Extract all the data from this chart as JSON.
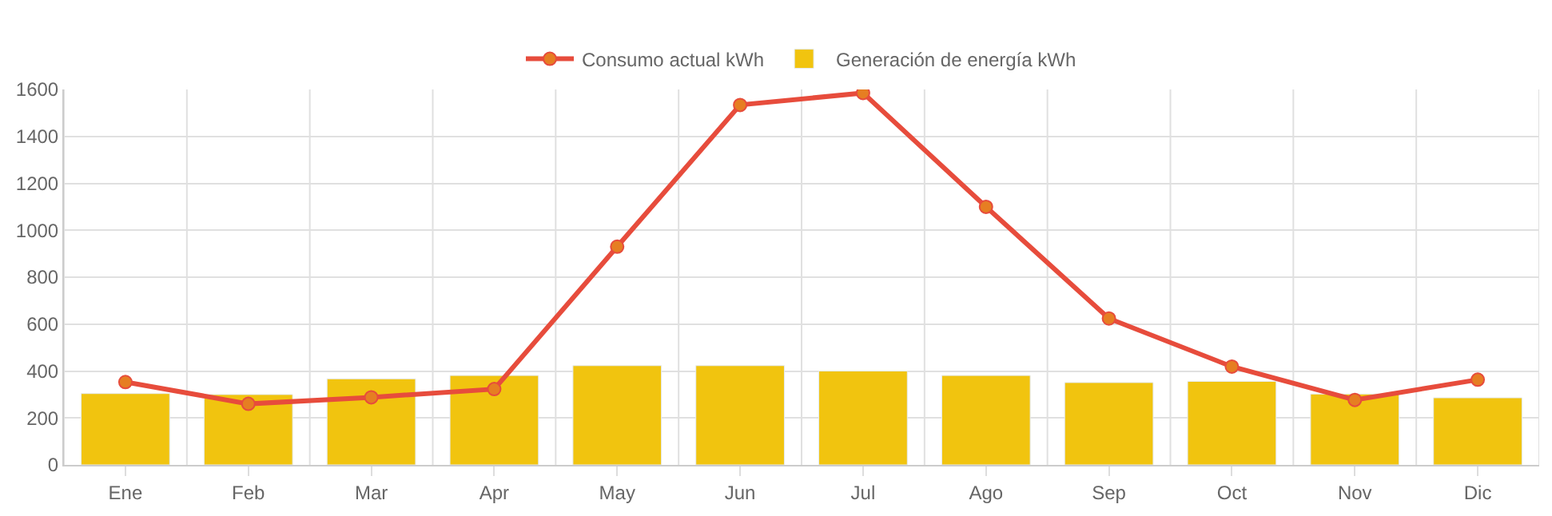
{
  "chart_data": {
    "type": "bar",
    "categories": [
      "Ene",
      "Feb",
      "Mar",
      "Apr",
      "May",
      "Jun",
      "Jul",
      "Ago",
      "Sep",
      "Oct",
      "Nov",
      "Dic"
    ],
    "series": [
      {
        "name": "Consumo actual kWh",
        "type": "line",
        "color": "#e74c3c",
        "marker": "circle",
        "values": [
          353,
          260,
          288,
          323,
          930,
          1534,
          1585,
          1100,
          624,
          419,
          277,
          363
        ]
      },
      {
        "name": "Generación de energía kWh",
        "color": "#f1c40f",
        "values": [
          304,
          300,
          367,
          381,
          423,
          423,
          400,
          381,
          351,
          356,
          302,
          286
        ]
      }
    ],
    "ylim": [
      0,
      1600
    ],
    "yticks": [
      0,
      200,
      400,
      600,
      800,
      1000,
      1200,
      1400,
      1600
    ],
    "grid": true,
    "legend": "top"
  }
}
